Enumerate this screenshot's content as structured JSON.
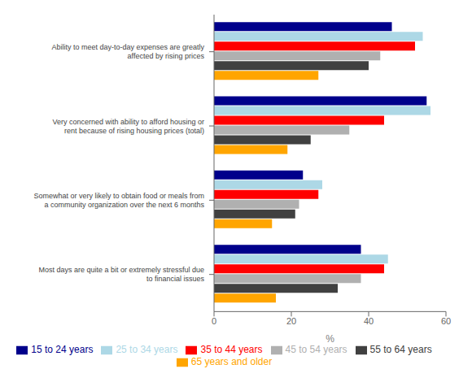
{
  "chart_data": {
    "type": "bar",
    "orientation": "horizontal",
    "categories": [
      "Ability to meet day-to-day expenses are greatly\naffected by rising prices",
      "Very concerned with ability to afford housing or\nrent because of rising housing prices (total)",
      "Somewhat or very likely to obtain food or meals from\na community organization over the next 6 months",
      "Most days are quite a bit or extremely stressful due\nto financial issues"
    ],
    "series": [
      {
        "name": "15 to 24 years",
        "color": "#00008B",
        "values": [
          46,
          55,
          23,
          38
        ]
      },
      {
        "name": "25 to 34 years",
        "color": "#ADD8E6",
        "values": [
          54,
          56,
          28,
          45
        ]
      },
      {
        "name": "35 to 44 years",
        "color": "#FF0000",
        "values": [
          52,
          44,
          27,
          44
        ]
      },
      {
        "name": "45 to 54 years",
        "color": "#B0B0B0",
        "values": [
          43,
          35,
          22,
          38
        ]
      },
      {
        "name": "55 to 64 years",
        "color": "#404040",
        "values": [
          40,
          25,
          21,
          32
        ]
      },
      {
        "name": "65 years and older",
        "color": "#FFA500",
        "values": [
          27,
          19,
          15,
          16
        ]
      }
    ],
    "xlabel": "%",
    "xlim": [
      0,
      60
    ],
    "xticks": [
      0,
      20,
      40,
      60
    ],
    "grid": false,
    "legend": "bottom"
  }
}
